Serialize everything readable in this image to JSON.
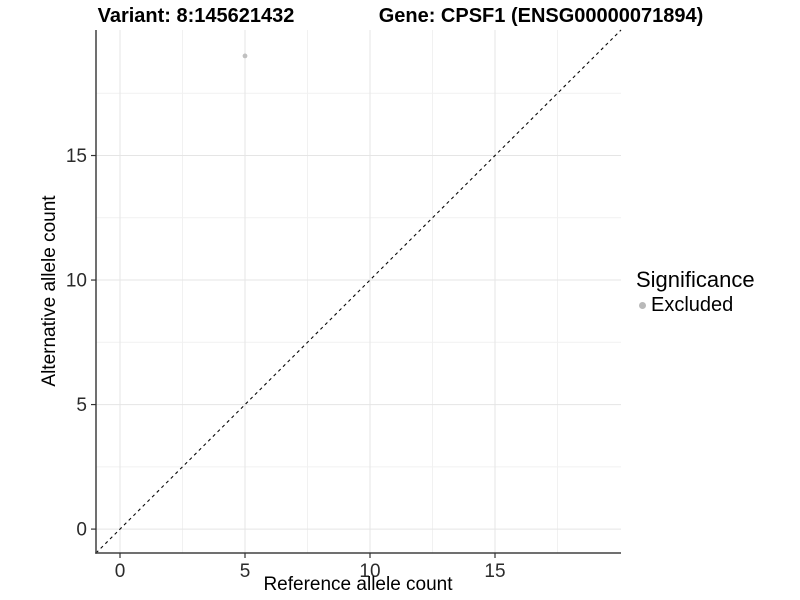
{
  "header": {
    "variant_title": "Variant: 8:145621432",
    "gene_title": "Gene: CPSF1 (ENSG00000071894)"
  },
  "legend": {
    "title": "Significance",
    "items": [
      {
        "label": "Excluded",
        "color": "#b9b9b9"
      }
    ]
  },
  "chart_data": {
    "type": "scatter",
    "title_left": "Variant: 8:145621432",
    "title_right": "Gene: CPSF1 (ENSG00000071894)",
    "xlabel": "Reference allele count",
    "ylabel": "Alternative allele count",
    "xlim": [
      -0.96,
      20.04
    ],
    "ylim": [
      -0.96,
      20.04
    ],
    "x_ticks": [
      0,
      5,
      10,
      15
    ],
    "y_ticks": [
      0,
      5,
      10,
      15
    ],
    "x_minor_ticks": [
      2.5,
      7.5,
      12.5,
      17.5
    ],
    "y_minor_ticks": [
      2.5,
      7.5,
      12.5,
      17.5
    ],
    "grid": true,
    "legend_position": "right",
    "reference_line": {
      "type": "identity",
      "slope": 1,
      "intercept": 0,
      "style": "dashed",
      "color": "#0a0a0a"
    },
    "series": [
      {
        "name": "Excluded",
        "color": "#c0c0c0",
        "points": [
          {
            "x": 5,
            "y": 19
          }
        ]
      }
    ],
    "style_colors": {
      "grid_major": "#e5e5e5",
      "grid_minor": "#f1f1f1",
      "axis_line": "#404040",
      "tick_mark": "#333333",
      "tick_label": "#2b2b2b"
    }
  }
}
